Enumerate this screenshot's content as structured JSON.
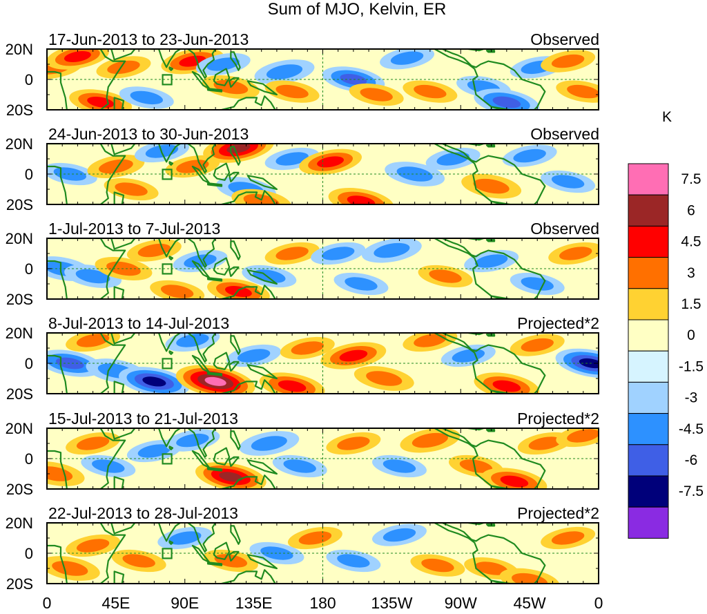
{
  "title": "Sum of MJO, Kelvin, ER",
  "y_axis_labels": [
    "20N",
    "0",
    "20S"
  ],
  "x_axis_labels": [
    "0",
    "45E",
    "90E",
    "135E",
    "180",
    "135W",
    "90W",
    "45W",
    "0"
  ],
  "colorbar": {
    "unit": "K",
    "tick_labels": [
      "7.5",
      "6",
      "4.5",
      "3",
      "1.5",
      "0",
      "-1.5",
      "-3",
      "-4.5",
      "-6",
      "-7.5"
    ],
    "colors": [
      "#ff6eb4",
      "#9b2626",
      "#ff0000",
      "#ff7000",
      "#ffd232",
      "#ffffc4",
      "#d6f4ff",
      "#a0d2ff",
      "#2d91ff",
      "#3f5fe6",
      "#00007a",
      "#8a2be2"
    ]
  },
  "panels": [
    {
      "date_range": "17-Jun-2013 to 23-Jun-2013",
      "type": "Observed"
    },
    {
      "date_range": "24-Jun-2013 to 30-Jun-2013",
      "type": "Observed"
    },
    {
      "date_range": "1-Jul-2013 to 7-Jul-2013",
      "type": "Observed"
    },
    {
      "date_range": "8-Jul-2013 to 14-Jul-2013",
      "type": "Projected*2"
    },
    {
      "date_range": "15-Jul-2013 to 21-Jul-2013",
      "type": "Projected*2"
    },
    {
      "date_range": "22-Jul-2013 to 28-Jul-2013",
      "type": "Projected*2"
    }
  ],
  "anomaly_blobs": [
    [
      [
        5,
        8,
        3.5
      ],
      [
        20,
        15,
        4.5
      ],
      [
        35,
        -15,
        4.5
      ],
      [
        50,
        8,
        3
      ],
      [
        65,
        -12,
        -3
      ],
      [
        95,
        12,
        4.5
      ],
      [
        120,
        -5,
        3.5
      ],
      [
        115,
        10,
        -3
      ],
      [
        155,
        5,
        -4
      ],
      [
        160,
        -8,
        3
      ],
      [
        200,
        0,
        -4.5
      ],
      [
        215,
        -10,
        3
      ],
      [
        235,
        14,
        -3
      ],
      [
        250,
        -8,
        3
      ],
      [
        285,
        -5,
        -3
      ],
      [
        300,
        -15,
        -5
      ],
      [
        320,
        8,
        -3
      ],
      [
        340,
        12,
        3
      ],
      [
        350,
        -8,
        3
      ]
    ],
    [
      [
        15,
        0,
        -3
      ],
      [
        45,
        5,
        3.5
      ],
      [
        55,
        -10,
        3
      ],
      [
        75,
        15,
        -3
      ],
      [
        95,
        5,
        3
      ],
      [
        125,
        17,
        6
      ],
      [
        130,
        -10,
        -4
      ],
      [
        140,
        -18,
        4
      ],
      [
        160,
        10,
        -3
      ],
      [
        185,
        8,
        4.5
      ],
      [
        205,
        -18,
        5
      ],
      [
        240,
        0,
        -4
      ],
      [
        265,
        10,
        -3
      ],
      [
        290,
        -8,
        4
      ],
      [
        315,
        12,
        -3
      ],
      [
        340,
        -5,
        -3
      ]
    ],
    [
      [
        10,
        0,
        -4
      ],
      [
        30,
        -5,
        -3.5
      ],
      [
        50,
        0,
        3.5
      ],
      [
        70,
        12,
        3
      ],
      [
        85,
        -15,
        3
      ],
      [
        100,
        5,
        -3
      ],
      [
        125,
        -15,
        4.5
      ],
      [
        145,
        -5,
        -3
      ],
      [
        160,
        10,
        3
      ],
      [
        190,
        10,
        -3
      ],
      [
        205,
        -10,
        -3
      ],
      [
        225,
        12,
        -4
      ],
      [
        260,
        -5,
        3
      ],
      [
        290,
        5,
        -3
      ],
      [
        320,
        -10,
        -3
      ],
      [
        345,
        10,
        3
      ]
    ],
    [
      [
        15,
        0,
        -5
      ],
      [
        30,
        15,
        3
      ],
      [
        45,
        -5,
        -4
      ],
      [
        70,
        -12,
        -6
      ],
      [
        95,
        15,
        -3
      ],
      [
        110,
        -12,
        7.5
      ],
      [
        135,
        5,
        -3
      ],
      [
        160,
        -15,
        5
      ],
      [
        170,
        10,
        3
      ],
      [
        200,
        5,
        5
      ],
      [
        220,
        -10,
        4
      ],
      [
        250,
        15,
        3
      ],
      [
        275,
        5,
        -3
      ],
      [
        300,
        -15,
        5
      ],
      [
        320,
        12,
        3
      ],
      [
        355,
        0,
        -6
      ]
    ],
    [
      [
        5,
        -10,
        4
      ],
      [
        30,
        10,
        3
      ],
      [
        40,
        -5,
        -3
      ],
      [
        70,
        5,
        -3
      ],
      [
        95,
        12,
        -3
      ],
      [
        120,
        -12,
        6
      ],
      [
        145,
        10,
        -4
      ],
      [
        165,
        -5,
        -3
      ],
      [
        200,
        10,
        3
      ],
      [
        230,
        -5,
        -3
      ],
      [
        250,
        12,
        4
      ],
      [
        280,
        -5,
        3
      ],
      [
        305,
        -15,
        5
      ],
      [
        325,
        10,
        3
      ],
      [
        350,
        15,
        3
      ]
    ],
    [
      [
        15,
        -10,
        4
      ],
      [
        30,
        5,
        3
      ],
      [
        60,
        -5,
        3
      ],
      [
        90,
        10,
        -3
      ],
      [
        120,
        -5,
        3
      ],
      [
        150,
        0,
        -3
      ],
      [
        175,
        10,
        3
      ],
      [
        200,
        -5,
        -3
      ],
      [
        230,
        12,
        -3
      ],
      [
        255,
        -8,
        3
      ],
      [
        290,
        -10,
        3
      ],
      [
        315,
        -18,
        4
      ],
      [
        340,
        10,
        3
      ]
    ]
  ]
}
